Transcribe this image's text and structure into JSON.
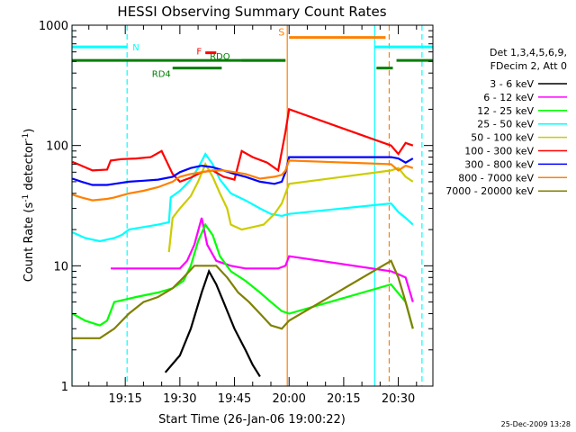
{
  "chart_data": {
    "type": "line",
    "title": "HESSI Observing Summary Count Rates",
    "xlabel": "Start Time (26-Jan-06 19:00:22)",
    "ylabel_main": "Count Rate (s",
    "ylabel_sup1": "-1",
    "ylabel_mid": " detector",
    "ylabel_sup2": "-1",
    "ylabel_end": ")",
    "yscale": "log",
    "ylim": [
      1,
      1000
    ],
    "xlim_minutes": [
      0.37,
      99.5
    ],
    "y_ticks": [
      {
        "value": 1,
        "label": "1"
      },
      {
        "value": 10,
        "label": "10"
      },
      {
        "value": 100,
        "label": "100"
      },
      {
        "value": 1000,
        "label": "1000"
      }
    ],
    "x_ticks": [
      {
        "minute": 15,
        "label": "19:15"
      },
      {
        "minute": 30,
        "label": "19:30"
      },
      {
        "minute": 45,
        "label": "19:45"
      },
      {
        "minute": 60,
        "label": "20:00"
      },
      {
        "minute": 75,
        "label": "20:15"
      },
      {
        "minute": 90,
        "label": "20:30"
      }
    ],
    "legend_header": [
      "Det 1,3,4,5,6,9,",
      "FDecim 2, Att 0"
    ],
    "series": [
      {
        "name": "3 - 6 keV",
        "color": "#000000",
        "points": [
          [
            26,
            1.3
          ],
          [
            30,
            1.8
          ],
          [
            33,
            3
          ],
          [
            36,
            6
          ],
          [
            38,
            9
          ],
          [
            40,
            7
          ],
          [
            42,
            5
          ],
          [
            45,
            3
          ],
          [
            48,
            2
          ],
          [
            50,
            1.5
          ],
          [
            52,
            1.2
          ]
        ]
      },
      {
        "name": "6 - 12 keV",
        "color": "#ff00ff",
        "points": [
          [
            11,
            9.5
          ],
          [
            30,
            9.5
          ],
          [
            32,
            11
          ],
          [
            34,
            15
          ],
          [
            36,
            25
          ],
          [
            37.5,
            15
          ],
          [
            40,
            11
          ],
          [
            44,
            10
          ],
          [
            48,
            9.5
          ],
          [
            57,
            9.5
          ],
          [
            59,
            10
          ],
          [
            60,
            12
          ],
          [
            88,
            9
          ],
          [
            90,
            8.5
          ],
          [
            92,
            8
          ],
          [
            94,
            5
          ]
        ]
      },
      {
        "name": "12 - 25 keV",
        "color": "#00ff00",
        "points": [
          [
            0.5,
            4
          ],
          [
            4,
            3.5
          ],
          [
            8,
            3.2
          ],
          [
            10,
            3.5
          ],
          [
            12,
            5
          ],
          [
            18,
            5.5
          ],
          [
            24,
            6
          ],
          [
            28,
            6.5
          ],
          [
            31,
            7.5
          ],
          [
            33,
            10
          ],
          [
            35,
            16
          ],
          [
            37,
            22
          ],
          [
            39,
            18
          ],
          [
            41,
            12
          ],
          [
            44,
            9
          ],
          [
            48,
            7.5
          ],
          [
            52,
            6
          ],
          [
            55,
            5
          ],
          [
            58,
            4.2
          ],
          [
            60,
            4
          ],
          [
            88,
            7
          ],
          [
            92,
            5
          ],
          [
            94,
            3
          ]
        ]
      },
      {
        "name": "25 - 50 keV",
        "color": "#00ffff",
        "points": [
          [
            0.5,
            19
          ],
          [
            4,
            17
          ],
          [
            8,
            16
          ],
          [
            12,
            17
          ],
          [
            14,
            18
          ],
          [
            16,
            20
          ],
          [
            20,
            21
          ],
          [
            24,
            22
          ],
          [
            27,
            23
          ],
          [
            27.5,
            37
          ],
          [
            30,
            42
          ],
          [
            33,
            52
          ],
          [
            35,
            65
          ],
          [
            37,
            85
          ],
          [
            39,
            70
          ],
          [
            41,
            52
          ],
          [
            44,
            40
          ],
          [
            48,
            35
          ],
          [
            52,
            30
          ],
          [
            55,
            27
          ],
          [
            58,
            26
          ],
          [
            60,
            27
          ],
          [
            88,
            33
          ],
          [
            90,
            28
          ],
          [
            92,
            25
          ],
          [
            94,
            22
          ]
        ]
      },
      {
        "name": "50 - 100 keV",
        "color": "#cccc00",
        "points": [
          [
            27,
            13
          ],
          [
            28,
            25
          ],
          [
            30,
            30
          ],
          [
            33,
            38
          ],
          [
            35,
            50
          ],
          [
            37,
            70
          ],
          [
            39,
            55
          ],
          [
            41,
            40
          ],
          [
            43,
            30
          ],
          [
            44,
            22
          ],
          [
            47,
            20
          ],
          [
            50,
            21
          ],
          [
            53,
            22
          ],
          [
            56,
            27
          ],
          [
            58,
            33
          ],
          [
            60,
            48
          ],
          [
            88,
            62
          ],
          [
            90,
            65
          ],
          [
            92,
            55
          ],
          [
            94,
            50
          ]
        ]
      },
      {
        "name": "100 - 300 keV",
        "color": "#ff0000",
        "points": [
          [
            0.5,
            73
          ],
          [
            3,
            68
          ],
          [
            6,
            62
          ],
          [
            10,
            63
          ],
          [
            11,
            75
          ],
          [
            14,
            77
          ],
          [
            18,
            78
          ],
          [
            22,
            80
          ],
          [
            25,
            90
          ],
          [
            28,
            58
          ],
          [
            30,
            50
          ],
          [
            33,
            54
          ],
          [
            36,
            60
          ],
          [
            39,
            62
          ],
          [
            42,
            55
          ],
          [
            45,
            52
          ],
          [
            47,
            90
          ],
          [
            50,
            80
          ],
          [
            54,
            72
          ],
          [
            57,
            62
          ],
          [
            59,
            130
          ],
          [
            60,
            200
          ],
          [
            88,
            100
          ],
          [
            90,
            85
          ],
          [
            92,
            105
          ],
          [
            94,
            100
          ]
        ]
      },
      {
        "name": "300 - 800 keV",
        "color": "#0000ff",
        "points": [
          [
            0.5,
            53
          ],
          [
            3,
            50
          ],
          [
            6,
            47
          ],
          [
            10,
            47
          ],
          [
            12,
            48
          ],
          [
            16,
            50
          ],
          [
            20,
            51
          ],
          [
            24,
            52
          ],
          [
            28,
            55
          ],
          [
            30,
            60
          ],
          [
            33,
            65
          ],
          [
            36,
            68
          ],
          [
            39,
            66
          ],
          [
            42,
            62
          ],
          [
            45,
            58
          ],
          [
            48,
            55
          ],
          [
            52,
            50
          ],
          [
            56,
            48
          ],
          [
            58,
            50
          ],
          [
            59,
            60
          ],
          [
            60,
            80
          ],
          [
            88,
            80
          ],
          [
            90,
            78
          ],
          [
            92,
            72
          ],
          [
            94,
            78
          ]
        ]
      },
      {
        "name": "800 - 7000 keV",
        "color": "#ff8000",
        "points": [
          [
            0.5,
            39
          ],
          [
            3,
            37
          ],
          [
            6,
            35
          ],
          [
            10,
            36
          ],
          [
            12,
            37
          ],
          [
            16,
            40
          ],
          [
            20,
            42
          ],
          [
            24,
            45
          ],
          [
            28,
            50
          ],
          [
            30,
            55
          ],
          [
            33,
            58
          ],
          [
            36,
            60
          ],
          [
            39,
            62
          ],
          [
            42,
            62
          ],
          [
            45,
            60
          ],
          [
            48,
            58
          ],
          [
            52,
            53
          ],
          [
            56,
            55
          ],
          [
            58,
            57
          ],
          [
            59,
            62
          ],
          [
            60,
            75
          ],
          [
            88,
            70
          ],
          [
            90,
            62
          ],
          [
            92,
            68
          ],
          [
            94,
            65
          ]
        ]
      },
      {
        "name": "7000 - 20000 keV",
        "color": "#808000",
        "points": [
          [
            0.5,
            2.5
          ],
          [
            4,
            2.5
          ],
          [
            8,
            2.5
          ],
          [
            12,
            3
          ],
          [
            16,
            4
          ],
          [
            20,
            5
          ],
          [
            24,
            5.5
          ],
          [
            28,
            6.5
          ],
          [
            31,
            8
          ],
          [
            34,
            10
          ],
          [
            37,
            10
          ],
          [
            40,
            10
          ],
          [
            43,
            8
          ],
          [
            46,
            6
          ],
          [
            49,
            5
          ],
          [
            52,
            4
          ],
          [
            55,
            3.2
          ],
          [
            58,
            3
          ],
          [
            60,
            3.5
          ],
          [
            88,
            11
          ],
          [
            90,
            8
          ],
          [
            92,
            5
          ],
          [
            94,
            3
          ]
        ]
      }
    ],
    "state_bars": [
      {
        "label": "N",
        "color": "#00ffff",
        "segments": [
          [
            0.37,
            15.5
          ],
          [
            83.5,
            99.5
          ]
        ],
        "level": 660
      },
      {
        "label": "",
        "color": "#008000",
        "segments": [
          [
            0.37,
            59
          ],
          [
            89.5,
            99.5
          ]
        ],
        "level": 510
      },
      {
        "label": "RD4",
        "color": "#008000",
        "segments": [
          [
            28,
            41.5
          ],
          [
            84,
            88.5
          ]
        ],
        "level": 440
      },
      {
        "label": "RDO",
        "color": "#008000",
        "segments": [
          [
            47,
            59
          ]
        ],
        "level": 510
      },
      {
        "label": "F",
        "color": "#ff0000",
        "segments": [
          [
            37,
            40
          ]
        ],
        "level": 590
      },
      {
        "label": "S",
        "color": "#ff8000",
        "segments": [
          [
            60,
            86.5
          ]
        ],
        "level": 790
      }
    ],
    "vertical_markers": [
      {
        "minute": 0.37,
        "color": "#00ffff",
        "style": "solid"
      },
      {
        "minute": 15.5,
        "color": "#00ffff",
        "style": "dashed"
      },
      {
        "minute": 59.5,
        "color": "#ff8000",
        "style": "solid"
      },
      {
        "minute": 83.5,
        "color": "#00ffff",
        "style": "solid"
      },
      {
        "minute": 87.5,
        "color": "#ff8000",
        "style": "dashed"
      },
      {
        "minute": 96.5,
        "color": "#00ffff",
        "style": "dashed"
      }
    ]
  },
  "footer": {
    "timestamp": "25-Dec-2009 13:28"
  }
}
